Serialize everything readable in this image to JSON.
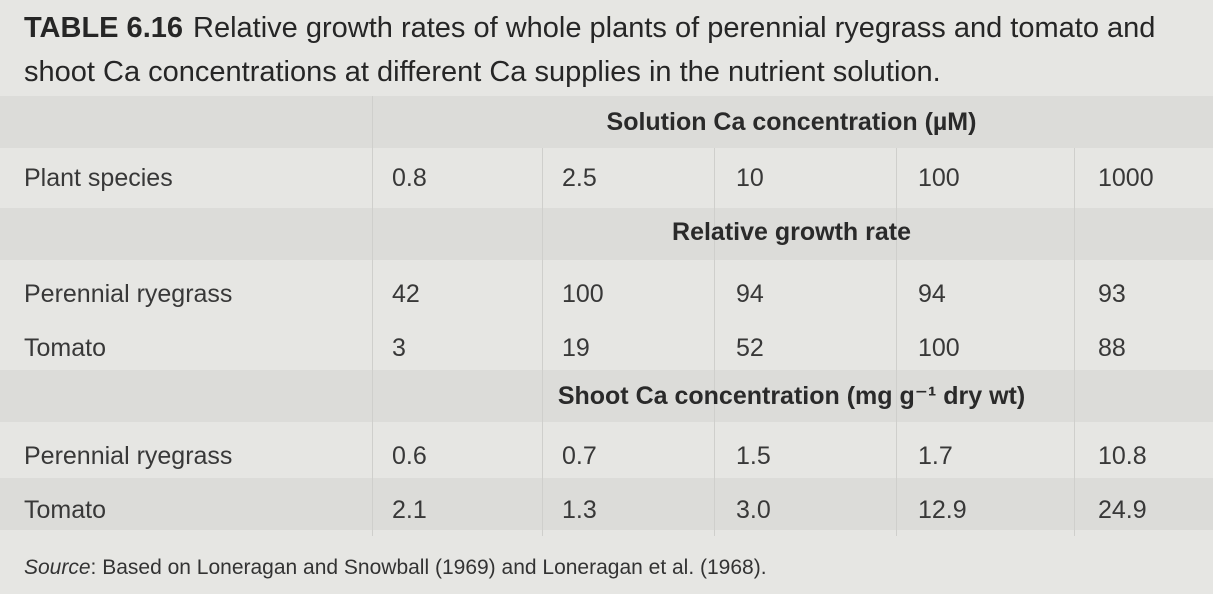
{
  "caption": {
    "label": "TABLE 6.16",
    "text": "Relative growth rates of whole plants of perennial ryegrass and tomato and shoot Ca concentrations at different Ca supplies in the nutrient solution."
  },
  "table": {
    "spanner_header": "Solution Ca concentration (µM)",
    "row_label_header": "Plant species",
    "concentrations": [
      "0.8",
      "2.5",
      "10",
      "100",
      "1000"
    ],
    "sections": [
      {
        "title": "Relative growth rate",
        "rows": [
          {
            "species": "Perennial ryegrass",
            "values": [
              "42",
              "100",
              "94",
              "94",
              "93"
            ]
          },
          {
            "species": "Tomato",
            "values": [
              "3",
              "19",
              "52",
              "100",
              "88"
            ]
          }
        ]
      },
      {
        "title": "Shoot Ca concentration (mg g⁻¹ dry wt)",
        "rows": [
          {
            "species": "Perennial ryegrass",
            "values": [
              "0.6",
              "0.7",
              "1.5",
              "1.7",
              "10.8"
            ]
          },
          {
            "species": "Tomato",
            "values": [
              "2.1",
              "1.3",
              "3.0",
              "12.9",
              "24.9"
            ]
          }
        ]
      }
    ]
  },
  "source": {
    "label": "Source",
    "text": ": Based on Loneragan and Snowball (1969) and Loneragan et al. (1968)."
  }
}
